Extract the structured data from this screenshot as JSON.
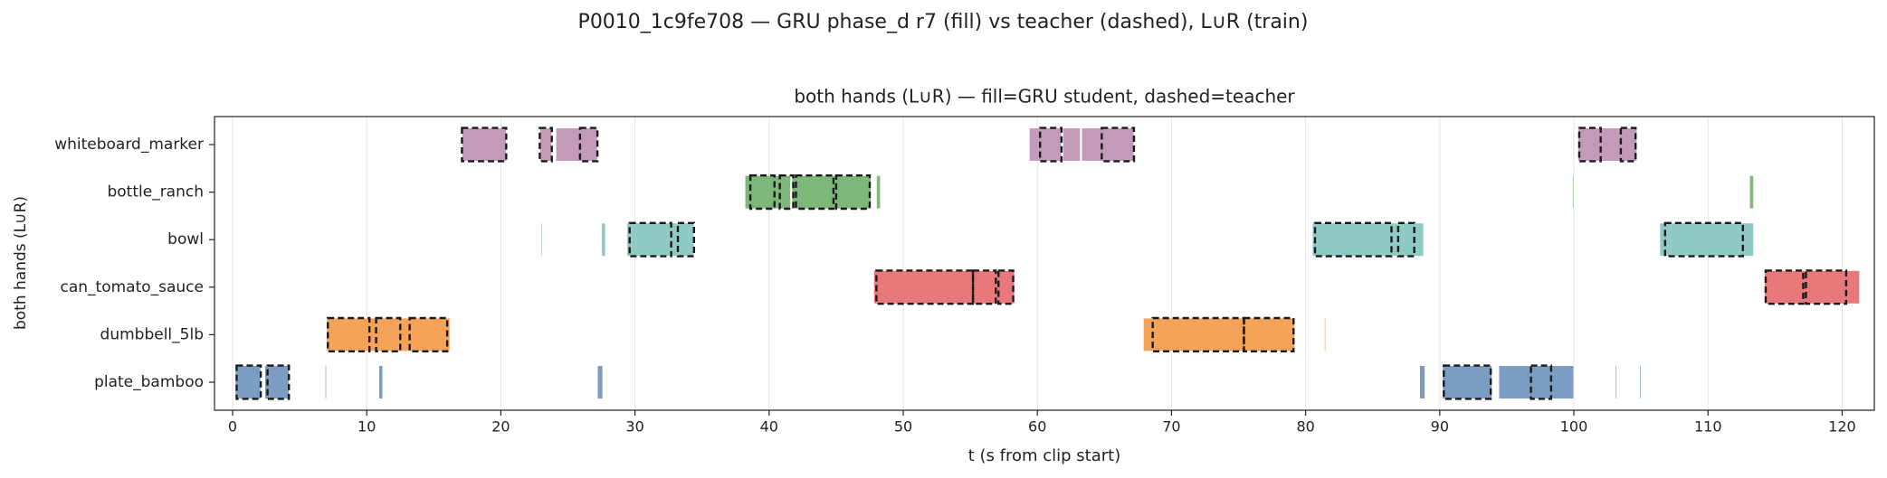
{
  "chart_data": {
    "type": "broken_barh",
    "title": "P0010_1c9fe708 — GRU phase_d r7 (fill) vs teacher (dashed), L∪R (train)",
    "subtitle": "both hands (L∪R) — fill=GRU student, dashed=teacher",
    "xlabel": "t (s from clip start)",
    "ylabel": "both hands (L∪R)",
    "categories": [
      "whiteboard_marker",
      "bottle_ranch",
      "bowl",
      "can_tomato_sauce",
      "dumbbell_5lb",
      "plate_bamboo"
    ],
    "colors": [
      "#c49ab9",
      "#7db87a",
      "#8fcbc4",
      "#e8787a",
      "#f6a35a",
      "#7b9dc4"
    ],
    "xlim": [
      -1.35,
      122.4
    ],
    "xticks": [
      0,
      10,
      20,
      30,
      40,
      50,
      60,
      70,
      80,
      90,
      100,
      110,
      120
    ],
    "grid": true,
    "series": [
      {
        "style": "fill",
        "values": [
          [
            [
              17.1,
              20.4
            ],
            [
              22.9,
              23.8
            ],
            [
              24.1,
              27.2
            ],
            [
              59.4,
              61.8
            ],
            [
              61.9,
              63.2
            ],
            [
              63.3,
              67.2
            ],
            [
              100.3,
              104.7
            ]
          ],
          [
            [
              38.2,
              41.6
            ],
            [
              41.7,
              47.6
            ],
            [
              48.0,
              48.3
            ],
            [
              99.9,
              100.0
            ],
            [
              113.1,
              113.4
            ]
          ],
          [
            [
              23.0,
              23.1
            ],
            [
              27.5,
              27.8
            ],
            [
              29.4,
              34.4
            ],
            [
              80.5,
              88.8
            ],
            [
              106.4,
              113.4
            ]
          ],
          [
            [
              47.8,
              58.3
            ],
            [
              114.2,
              121.3
            ]
          ],
          [
            [
              7.0,
              16.2
            ],
            [
              67.9,
              79.2
            ],
            [
              81.4,
              81.5
            ]
          ],
          [
            [
              0.2,
              2.1
            ],
            [
              2.4,
              4.2
            ],
            [
              6.9,
              7.0
            ],
            [
              10.9,
              11.2
            ],
            [
              27.2,
              27.6
            ],
            [
              88.5,
              88.9
            ],
            [
              90.2,
              93.9
            ],
            [
              94.4,
              100.0
            ],
            [
              103.1,
              103.2
            ],
            [
              104.9,
              105.0
            ]
          ]
        ]
      },
      {
        "style": "dashed",
        "values": [
          [
            [
              17.1,
              20.4
            ],
            [
              22.9,
              23.8
            ],
            [
              25.9,
              27.2
            ],
            [
              60.2,
              61.8
            ],
            [
              64.8,
              67.2
            ],
            [
              100.4,
              102.0
            ],
            [
              103.5,
              104.6
            ]
          ],
          [
            [
              38.6,
              40.4
            ],
            [
              40.8,
              41.8
            ],
            [
              42.0,
              44.8
            ],
            [
              45.0,
              47.5
            ]
          ],
          [
            [
              29.6,
              32.7
            ],
            [
              33.2,
              34.4
            ],
            [
              80.7,
              86.4
            ],
            [
              86.9,
              88.1
            ],
            [
              106.8,
              112.6
            ]
          ],
          [
            [
              48.0,
              55.2
            ],
            [
              55.2,
              56.9
            ],
            [
              57.1,
              58.2
            ],
            [
              114.3,
              117.1
            ],
            [
              117.3,
              120.3
            ]
          ],
          [
            [
              7.1,
              10.2
            ],
            [
              10.7,
              12.5
            ],
            [
              13.2,
              16.0
            ],
            [
              68.6,
              75.4
            ],
            [
              75.4,
              79.1
            ]
          ],
          [
            [
              0.3,
              2.1
            ],
            [
              2.6,
              4.2
            ],
            [
              90.3,
              93.8
            ],
            [
              96.8,
              98.3
            ]
          ]
        ]
      }
    ]
  }
}
